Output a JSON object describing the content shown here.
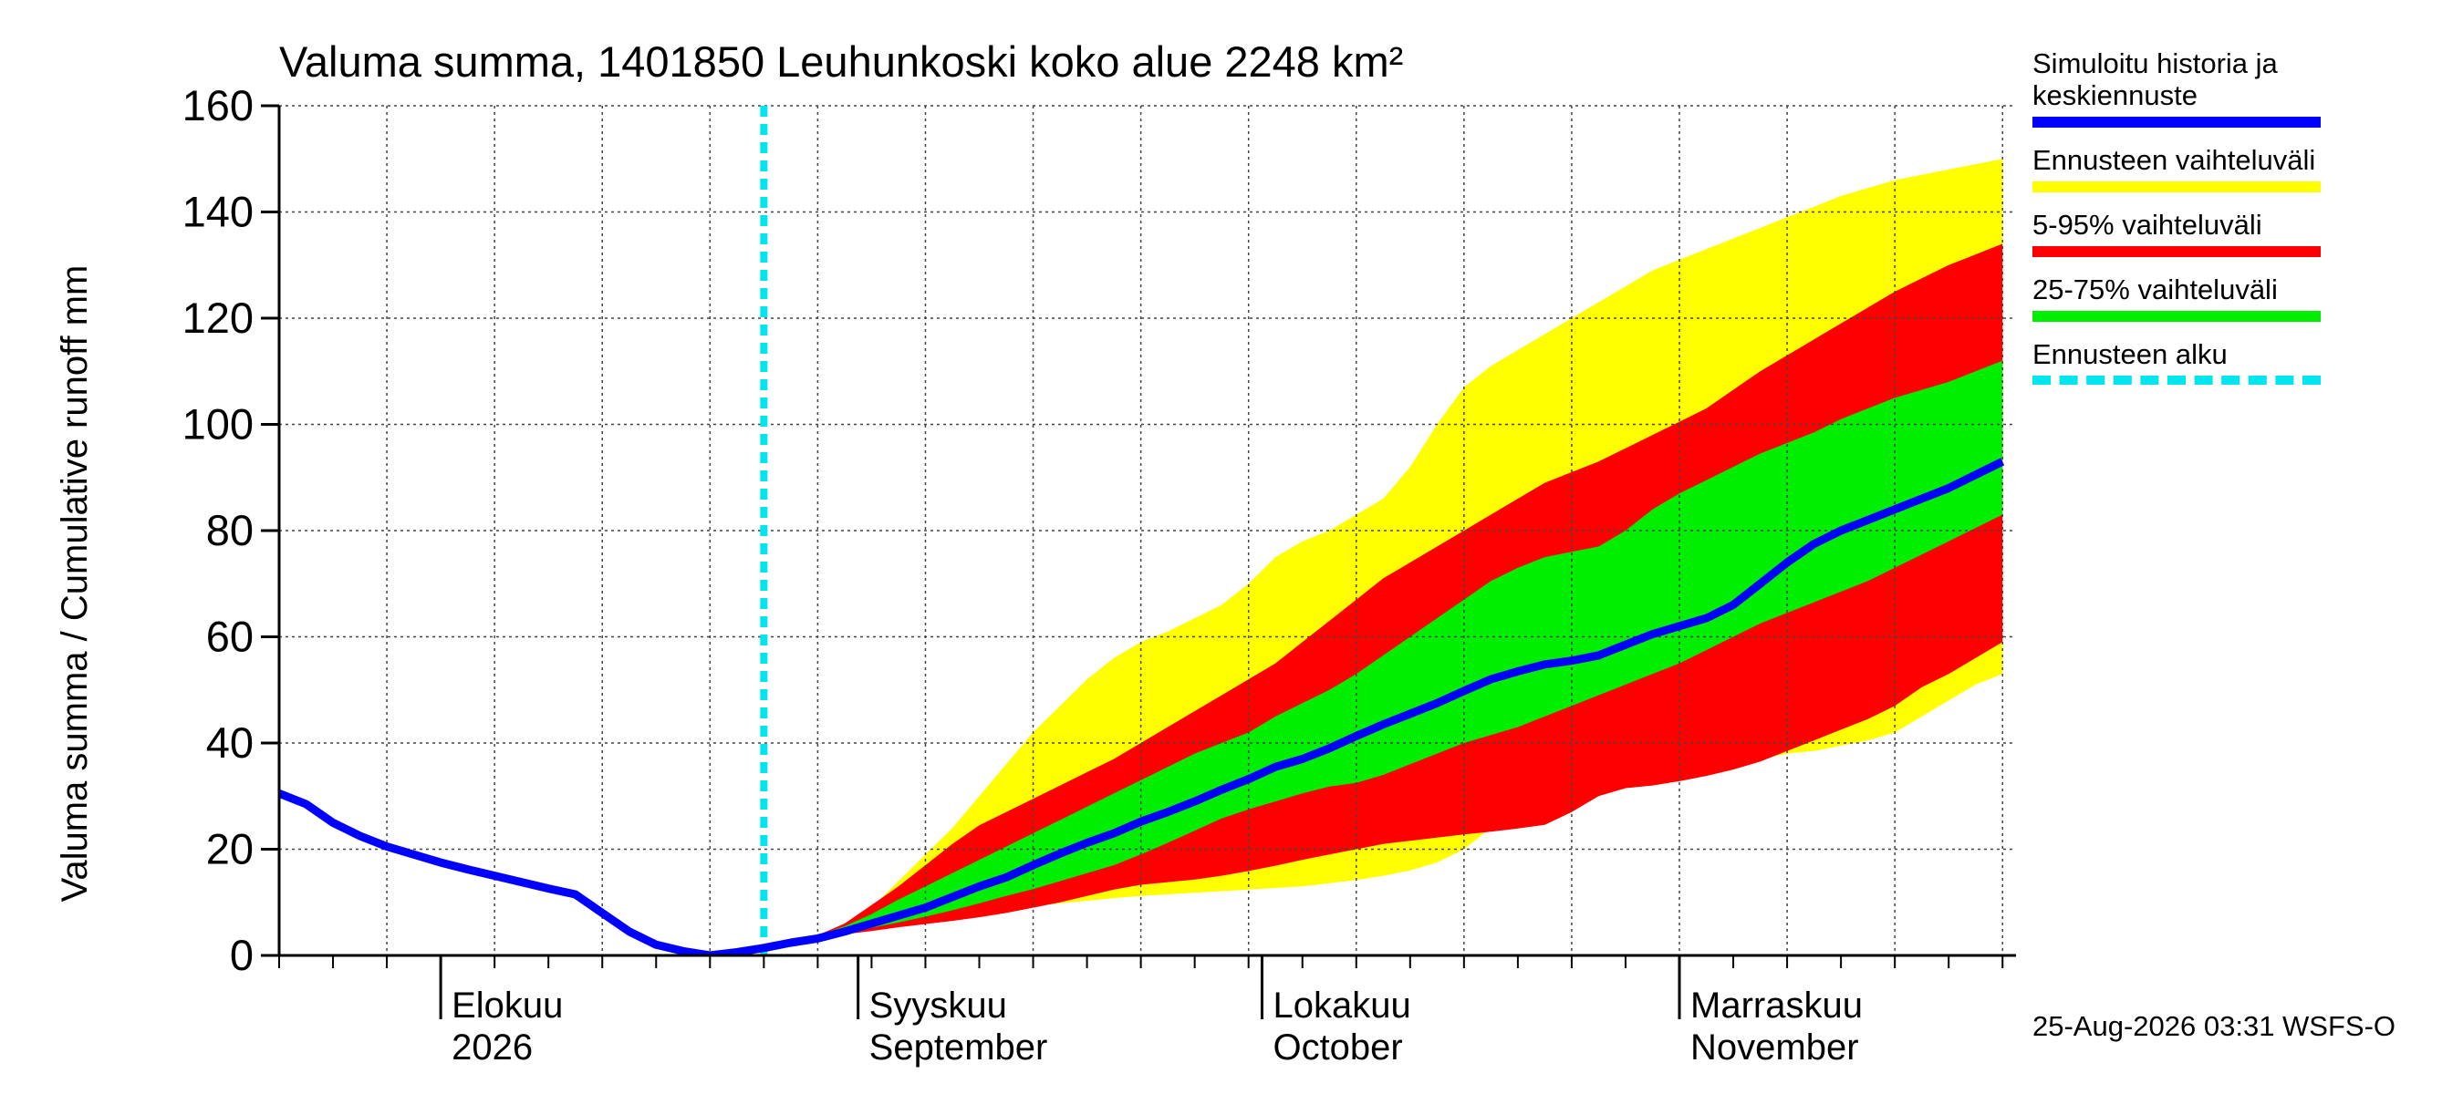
{
  "chart_data": {
    "type": "area",
    "title": "Valuma summa, 1401850 Leuhunkoski koko alue 2248 km²",
    "ylabel": "Valuma summa / Cumulative runoff    mm",
    "xlabel": "",
    "ylim": [
      0,
      160
    ],
    "yticks": [
      0,
      20,
      40,
      60,
      80,
      100,
      120,
      140,
      160
    ],
    "xlim": [
      "2026-07-20",
      "2026-11-26"
    ],
    "grid": true,
    "legend_position": "right",
    "month_labels": [
      {
        "line1": "Elokuu",
        "line2": "2026",
        "date": "2026-08-01"
      },
      {
        "line1": "Syyskuu",
        "line2": "September",
        "date": "2026-09-01"
      },
      {
        "line1": "Lokakuu",
        "line2": "October",
        "date": "2026-10-01"
      },
      {
        "line1": "Marraskuu",
        "line2": "November",
        "date": "2026-11-01"
      }
    ],
    "forecast_start": "2026-08-25",
    "x": [
      "2026-07-20",
      "2026-07-22",
      "2026-07-24",
      "2026-07-26",
      "2026-07-28",
      "2026-07-30",
      "2026-08-01",
      "2026-08-03",
      "2026-08-05",
      "2026-08-07",
      "2026-08-09",
      "2026-08-11",
      "2026-08-13",
      "2026-08-15",
      "2026-08-17",
      "2026-08-19",
      "2026-08-21",
      "2026-08-23",
      "2026-08-25",
      "2026-08-27",
      "2026-08-29",
      "2026-08-31",
      "2026-09-02",
      "2026-09-04",
      "2026-09-06",
      "2026-09-08",
      "2026-09-10",
      "2026-09-12",
      "2026-09-14",
      "2026-09-16",
      "2026-09-18",
      "2026-09-20",
      "2026-09-22",
      "2026-09-24",
      "2026-09-26",
      "2026-09-28",
      "2026-09-30",
      "2026-10-02",
      "2026-10-04",
      "2026-10-06",
      "2026-10-08",
      "2026-10-10",
      "2026-10-12",
      "2026-10-14",
      "2026-10-16",
      "2026-10-18",
      "2026-10-20",
      "2026-10-22",
      "2026-10-24",
      "2026-10-26",
      "2026-10-28",
      "2026-10-30",
      "2026-11-01",
      "2026-11-03",
      "2026-11-05",
      "2026-11-07",
      "2026-11-09",
      "2026-11-11",
      "2026-11-13",
      "2026-11-15",
      "2026-11-17",
      "2026-11-19",
      "2026-11-21",
      "2026-11-23",
      "2026-11-25"
    ],
    "series": [
      {
        "name": "Simuloitu historia ja keskiennuste",
        "color": "#0000ff",
        "values": [
          30.5,
          28.5,
          25,
          22.5,
          20.5,
          19,
          17.5,
          16.2,
          15,
          13.8,
          12.6,
          11.5,
          8,
          4.5,
          2,
          0.8,
          0,
          0.6,
          1.4,
          2.4,
          3.2,
          4.5,
          6,
          7.5,
          9,
          11,
          13,
          14.7,
          17,
          19.2,
          21.2,
          23,
          25.2,
          27,
          29,
          31.2,
          33.2,
          35.5,
          37,
          39,
          41.3,
          43.5,
          45.5,
          47.5,
          49.8,
          52,
          53.5,
          54.8,
          55.5,
          56.5,
          58.5,
          60.5,
          62,
          63.5,
          66,
          70,
          74,
          77.5,
          80,
          82,
          84,
          86,
          88,
          90.5,
          93
        ]
      },
      {
        "name": "Ennusteen vaihteluväli",
        "color": "#ffff00",
        "lower": [
          null,
          null,
          null,
          null,
          null,
          null,
          null,
          null,
          null,
          null,
          null,
          null,
          null,
          null,
          null,
          null,
          0,
          0.6,
          1.4,
          2.4,
          3.2,
          4,
          5,
          6,
          6.8,
          7.5,
          8,
          8.8,
          9.3,
          9.8,
          10.3,
          10.8,
          11.2,
          11.5,
          11.8,
          12.1,
          12.4,
          12.7,
          13,
          13.6,
          14.2,
          15,
          16,
          17.5,
          20,
          24,
          28,
          30,
          30.8,
          31.5,
          32,
          33,
          34,
          35,
          36,
          37,
          38,
          38.5,
          39.5,
          40.5,
          42,
          45,
          48,
          51,
          53
        ],
        "upper": [
          null,
          null,
          null,
          null,
          null,
          null,
          null,
          null,
          null,
          null,
          null,
          null,
          null,
          null,
          null,
          null,
          0,
          0.6,
          1.4,
          2.4,
          3.5,
          5.5,
          9,
          14,
          19,
          24,
          30,
          36,
          42,
          47,
          52,
          56,
          59,
          61,
          63.5,
          66,
          70,
          75,
          78,
          80,
          83,
          86,
          92,
          100,
          107,
          111,
          114,
          117,
          120,
          123,
          126,
          129,
          131,
          133,
          135,
          137,
          139,
          141,
          143,
          144.5,
          146,
          147,
          148,
          149,
          150
        ]
      },
      {
        "name": "5-95% vaihteluväli",
        "color": "#ff0000",
        "lower": [
          null,
          null,
          null,
          null,
          null,
          null,
          null,
          null,
          null,
          null,
          null,
          null,
          null,
          null,
          null,
          null,
          0,
          0.6,
          1.4,
          2.4,
          3,
          4,
          4.6,
          5.3,
          5.9,
          6.5,
          7.2,
          8,
          9,
          10,
          11.2,
          12.4,
          13.3,
          13.8,
          14.3,
          15,
          15.9,
          16.9,
          18,
          19,
          20,
          21,
          21.6,
          22.2,
          22.8,
          23.3,
          23.9,
          24.6,
          27,
          30,
          31.5,
          32,
          32.8,
          33.8,
          35,
          36.5,
          38.5,
          40.5,
          42.5,
          44.5,
          47,
          50.5,
          53,
          56,
          59
        ]
      },
      {
        "name": "25-75% vaihteluväli",
        "color": "#00ee00",
        "lower": [
          null,
          null,
          null,
          null,
          null,
          null,
          null,
          null,
          null,
          null,
          null,
          null,
          null,
          null,
          null,
          null,
          0,
          0.6,
          1.4,
          2.4,
          3.2,
          4.2,
          5.2,
          6.2,
          7.3,
          8.5,
          9.8,
          11.2,
          12.5,
          14,
          15.5,
          17,
          19,
          21.2,
          23.5,
          25.8,
          27.5,
          29,
          30.5,
          31.8,
          32.5,
          34,
          36,
          38,
          40,
          41.5,
          43,
          45,
          47,
          49,
          51,
          53,
          55,
          57.5,
          60,
          62.5,
          64.5,
          66.5,
          68.5,
          70.5,
          73,
          75.5,
          78,
          80.5,
          83
        ],
        "upper": [
          null,
          null,
          null,
          null,
          null,
          null,
          null,
          null,
          null,
          null,
          null,
          null,
          null,
          null,
          null,
          null,
          0,
          0.6,
          1.4,
          2.4,
          3.8,
          5.5,
          7.8,
          10.5,
          13,
          15.5,
          18,
          20.5,
          23,
          25.5,
          28,
          30.5,
          33,
          35.5,
          38,
          40,
          42,
          45,
          47.5,
          50,
          53,
          56.5,
          60,
          63.5,
          67,
          70.5,
          73,
          75,
          76,
          77,
          80,
          84,
          87,
          89.5,
          92,
          94.5,
          96.5,
          98.5,
          101,
          103,
          105,
          106.5,
          108,
          110,
          112
        ]
      }
    ],
    "band_5_95_upper": [
      null,
      null,
      null,
      null,
      null,
      null,
      null,
      null,
      null,
      null,
      null,
      null,
      null,
      null,
      null,
      null,
      0,
      0.6,
      1.4,
      2.4,
      3.8,
      6,
      9.5,
      13,
      17,
      21,
      24.5,
      27,
      29.5,
      32,
      34.5,
      37,
      40,
      43,
      46,
      49,
      52,
      55,
      59,
      63,
      67,
      71,
      74,
      77,
      80,
      83,
      86,
      89,
      91,
      93,
      95.5,
      98,
      100.5,
      103,
      106.5,
      110,
      113,
      116,
      119,
      122,
      125,
      127.5,
      130,
      132,
      134
    ]
  },
  "legend": {
    "item1": "Simuloitu historia ja",
    "item1b": "keskiennuste",
    "item2": "Ennusteen vaihteluväli",
    "item3": "5-95% vaihteluväli",
    "item4": "25-75% vaihteluväli",
    "item5": "Ennusteen alku",
    "color1": "#0000ff",
    "color2": "#ffff00",
    "color3": "#ff0000",
    "color4": "#00ee00",
    "color5": "#00e5ee"
  },
  "footer": "25-Aug-2026 03:31 WSFS-O"
}
